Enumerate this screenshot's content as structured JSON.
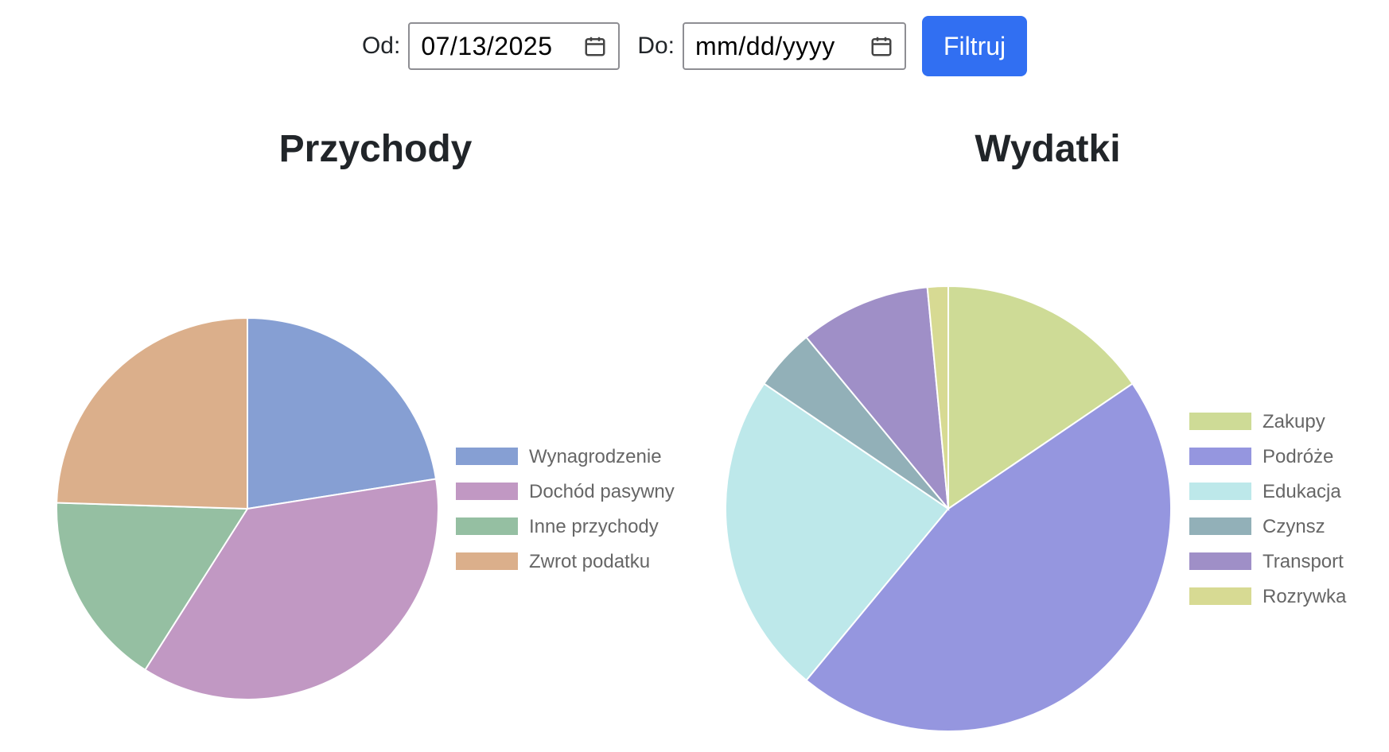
{
  "filter": {
    "from_label": "Od:",
    "from_value": "07/13/2025",
    "to_label": "Do:",
    "to_value": "mm/dd/yyyy",
    "button_label": "Filtruj"
  },
  "colors": {
    "button": "#316ff2"
  },
  "chart_data": [
    {
      "type": "pie",
      "title": "Przychody",
      "legend_position": "right",
      "labels": [
        "Wynagrodzenie",
        "Dochód pasywny",
        "Inne przychody",
        "Zwrot podatku"
      ],
      "values": [
        22.5,
        36.5,
        16.5,
        24.5
      ],
      "colors": [
        "#869fd3",
        "#c198c3",
        "#95bfa2",
        "#dbaf8b"
      ]
    },
    {
      "type": "pie",
      "title": "Wydatki",
      "legend_position": "right",
      "labels": [
        "Zakupy",
        "Podróże",
        "Edukacja",
        "Czynsz",
        "Transport",
        "Rozrywka"
      ],
      "values": [
        15.5,
        45.5,
        23.5,
        4.5,
        9.5,
        1.5
      ],
      "colors": [
        "#cedb96",
        "#9596df",
        "#bde8ea",
        "#92b0b8",
        "#9f8fc7",
        "#d7da93"
      ]
    }
  ]
}
